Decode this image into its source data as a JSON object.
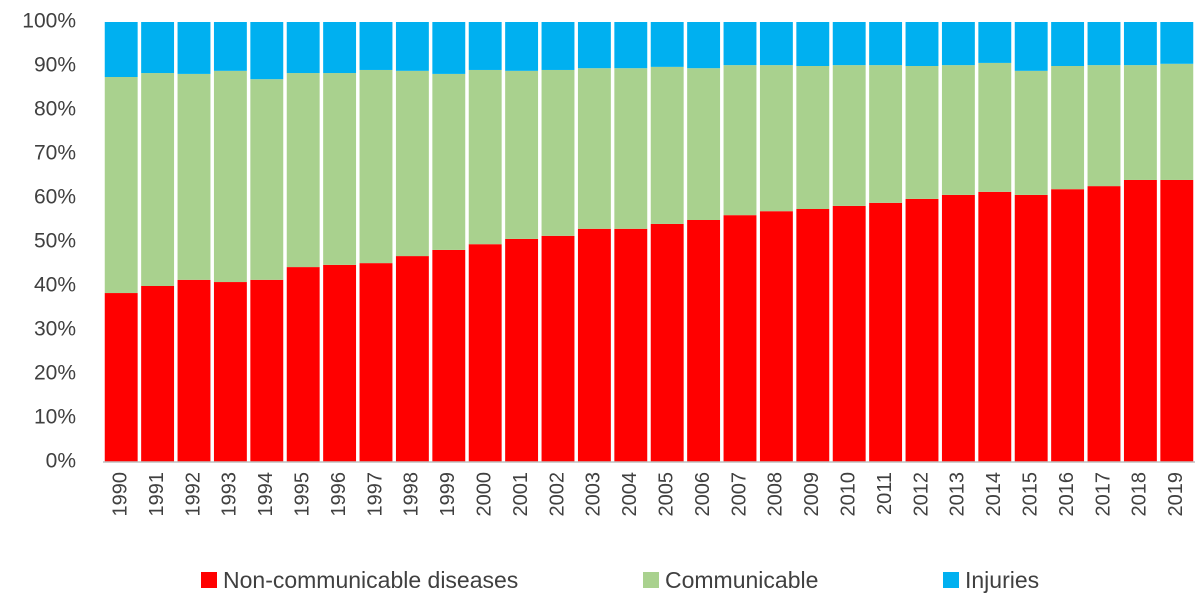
{
  "chart_data": {
    "type": "stacked-bar",
    "categories": [
      "1990",
      "1991",
      "1992",
      "1993",
      "1994",
      "1995",
      "1996",
      "1997",
      "1998",
      "1999",
      "2000",
      "2001",
      "2002",
      "2003",
      "2004",
      "2005",
      "2006",
      "2007",
      "2008",
      "2009",
      "2010",
      "2011",
      "2012",
      "2013",
      "2014",
      "2015",
      "2016",
      "2017",
      "2018",
      "2019"
    ],
    "series": [
      {
        "name": "Non-communicable diseases",
        "color": "#ff0000",
        "values": [
          38.4,
          40.0,
          41.4,
          40.9,
          41.4,
          44.3,
          44.8,
          45.2,
          46.8,
          48.2,
          49.5,
          50.7,
          51.4,
          53.0,
          53.0,
          54.1,
          55.0,
          56.1,
          57.0,
          57.5,
          58.2,
          58.9,
          59.8,
          60.7,
          61.4,
          60.7,
          62.0,
          62.7,
          64.1,
          64.1
        ]
      },
      {
        "name": "Communicable",
        "color": "#a9d18e",
        "values": [
          49.1,
          48.4,
          46.8,
          48.0,
          45.6,
          44.1,
          43.6,
          43.9,
          42.1,
          40.0,
          39.6,
          38.2,
          37.7,
          36.5,
          36.5,
          35.7,
          34.5,
          34.1,
          33.2,
          32.5,
          32.0,
          31.3,
          30.2,
          29.5,
          29.3,
          28.2,
          28.0,
          27.5,
          26.1,
          26.4
        ]
      },
      {
        "name": "Injuries",
        "color": "#00b0f0",
        "values": [
          12.5,
          11.6,
          11.8,
          11.1,
          13.0,
          11.6,
          11.6,
          10.9,
          11.1,
          11.8,
          10.9,
          11.1,
          10.9,
          10.5,
          10.5,
          10.2,
          10.5,
          9.8,
          9.8,
          10.0,
          9.8,
          9.8,
          10.0,
          9.8,
          9.3,
          11.1,
          10.0,
          9.8,
          9.8,
          9.5
        ]
      }
    ],
    "ylim": [
      0,
      100
    ],
    "yticks": [
      {
        "value": 0,
        "label": "0%"
      },
      {
        "value": 10,
        "label": "10%"
      },
      {
        "value": 20,
        "label": "20%"
      },
      {
        "value": 30,
        "label": "30%"
      },
      {
        "value": 40,
        "label": "40%"
      },
      {
        "value": 50,
        "label": "50%"
      },
      {
        "value": 60,
        "label": "60%"
      },
      {
        "value": 70,
        "label": "70%"
      },
      {
        "value": 80,
        "label": "80%"
      },
      {
        "value": 90,
        "label": "90%"
      },
      {
        "value": 100,
        "label": "100%"
      }
    ],
    "legend": "bottom"
  }
}
